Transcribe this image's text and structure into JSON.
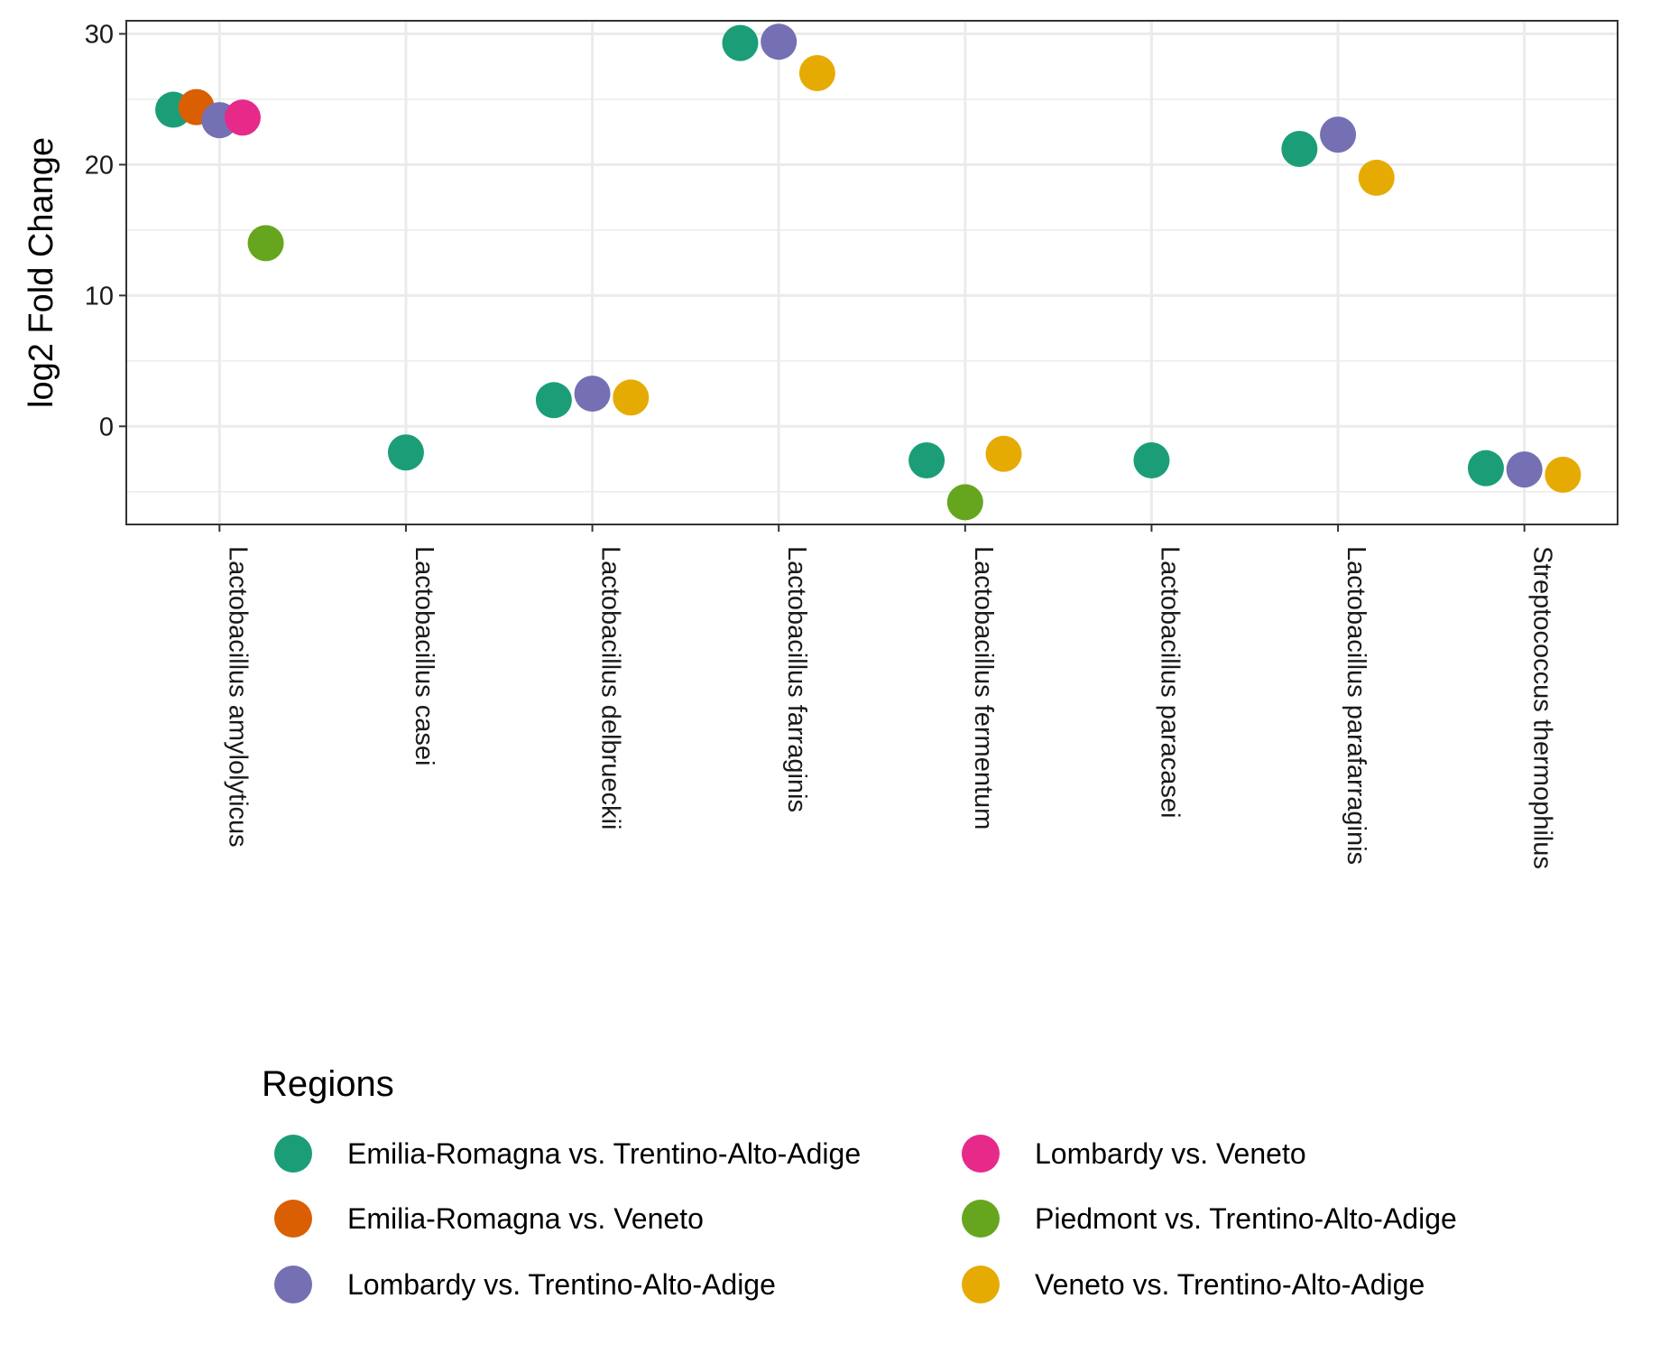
{
  "chart_data": {
    "type": "scatter",
    "title": "",
    "xlabel": "",
    "ylabel": "log2 Fold Change",
    "ylim": [
      -7.5,
      31
    ],
    "yticks": [
      0,
      10,
      20,
      30
    ],
    "grid": true,
    "legend_placement": "bottom",
    "legend_title": "Regions",
    "categories": [
      "Lactobacillus amylolyticus",
      "Lactobacillus casei",
      "Lactobacillus delbrueckii",
      "Lactobacillus farraginis",
      "Lactobacillus fermentum",
      "Lactobacillus paracasei",
      "Lactobacillus parafarraginis",
      "Streptococcus thermophilus"
    ],
    "series": [
      {
        "name": "Emilia-Romagna vs. Trentino-Alto-Adige",
        "color": "#1b9e77",
        "points": [
          {
            "category": "Lactobacillus amylolyticus",
            "y": 24.2
          },
          {
            "category": "Lactobacillus casei",
            "y": -2.0
          },
          {
            "category": "Lactobacillus delbrueckii",
            "y": 2.0
          },
          {
            "category": "Lactobacillus farraginis",
            "y": 29.3
          },
          {
            "category": "Lactobacillus fermentum",
            "y": -2.6
          },
          {
            "category": "Lactobacillus paracasei",
            "y": -2.6
          },
          {
            "category": "Lactobacillus parafarraginis",
            "y": 21.2
          },
          {
            "category": "Streptococcus thermophilus",
            "y": -3.2
          }
        ]
      },
      {
        "name": "Emilia-Romagna vs. Veneto",
        "color": "#d95f02",
        "points": [
          {
            "category": "Lactobacillus amylolyticus",
            "y": 24.4
          }
        ]
      },
      {
        "name": "Lombardy vs. Trentino-Alto-Adige",
        "color": "#7570b3",
        "points": [
          {
            "category": "Lactobacillus amylolyticus",
            "y": 23.4
          },
          {
            "category": "Lactobacillus delbrueckii",
            "y": 2.5
          },
          {
            "category": "Lactobacillus farraginis",
            "y": 29.4
          },
          {
            "category": "Lactobacillus parafarraginis",
            "y": 22.3
          },
          {
            "category": "Streptococcus thermophilus",
            "y": -3.3
          }
        ]
      },
      {
        "name": "Lombardy vs. Veneto",
        "color": "#e7298a",
        "points": [
          {
            "category": "Lactobacillus amylolyticus",
            "y": 23.6
          }
        ]
      },
      {
        "name": "Piedmont vs. Trentino-Alto-Adige",
        "color": "#66a61e",
        "points": [
          {
            "category": "Lactobacillus amylolyticus",
            "y": 14.0
          },
          {
            "category": "Lactobacillus fermentum",
            "y": -5.8
          }
        ]
      },
      {
        "name": "Veneto vs. Trentino-Alto-Adige",
        "color": "#e6ab02",
        "points": [
          {
            "category": "Lactobacillus delbrueckii",
            "y": 2.2
          },
          {
            "category": "Lactobacillus farraginis",
            "y": 27.0
          },
          {
            "category": "Lactobacillus fermentum",
            "y": -2.1
          },
          {
            "category": "Lactobacillus parafarraginis",
            "y": 19.0
          },
          {
            "category": "Streptococcus thermophilus",
            "y": -3.7
          }
        ]
      }
    ]
  }
}
